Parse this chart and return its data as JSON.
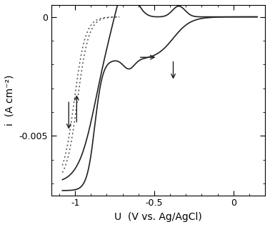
{
  "xlim": [
    -1.15,
    0.2
  ],
  "ylim": [
    -0.0075,
    0.0005
  ],
  "xticks": [
    -1.0,
    -0.5,
    0.0
  ],
  "yticks": [
    -0.005,
    0.0
  ],
  "xlabel": "U  (V vs. Ag/AgCl)",
  "ylabel": "i  (A cm⁻²)",
  "xlabel_fontsize": 10,
  "ylabel_fontsize": 10,
  "tick_fontsize": 9,
  "line_color": "#222222",
  "dot_line_color": "#444444",
  "background_color": "#ffffff",
  "figure_size": [
    3.78,
    3.18
  ],
  "dpi": 100
}
